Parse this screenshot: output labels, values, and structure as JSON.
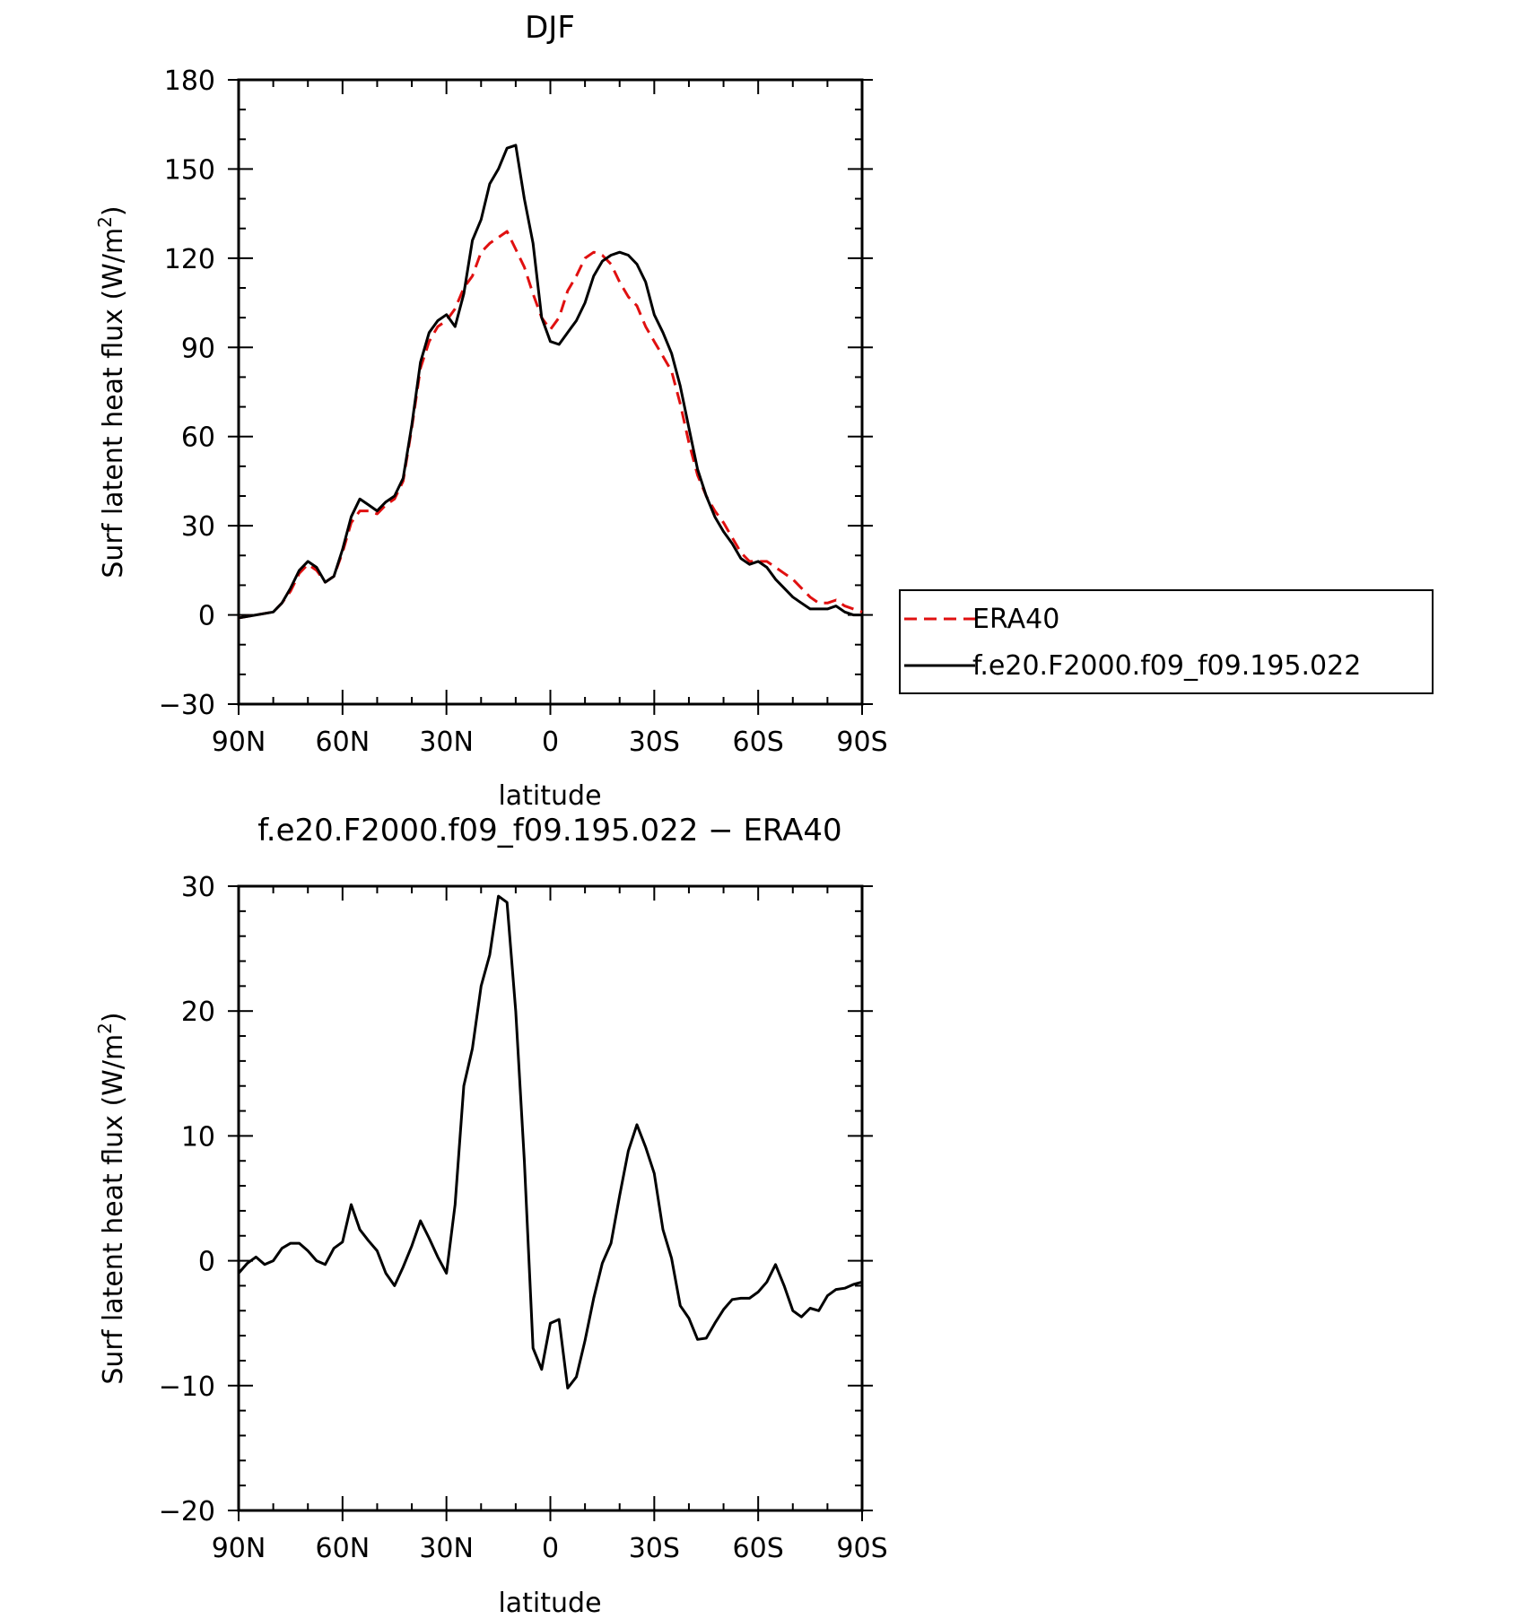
{
  "chart_data": [
    {
      "type": "line",
      "title": "DJF",
      "xlabel": "latitude",
      "ylabel": "Surf latent heat flux (W/m²)",
      "ylabel_parts": [
        "Surf latent heat flux (W/m",
        "2",
        ")"
      ],
      "xlim": [
        90,
        -90
      ],
      "ylim": [
        -30,
        180
      ],
      "x_ticks": [
        90,
        60,
        30,
        0,
        -30,
        -60,
        -90
      ],
      "x_tick_labels": [
        "90N",
        "60N",
        "30N",
        "0",
        "30S",
        "60S",
        "90S"
      ],
      "y_ticks": [
        -30,
        0,
        30,
        60,
        90,
        120,
        150,
        180
      ],
      "y_tick_labels": [
        "−30",
        "0",
        "30",
        "60",
        "90",
        "120",
        "150",
        "180"
      ],
      "grid": false,
      "legend": {
        "placement": "right",
        "entries": [
          {
            "name": "ERA40",
            "color": "#e01010",
            "dash": true
          },
          {
            "name": "f.e20.F2000.f09_f09.195.022",
            "color": "#000000",
            "dash": false
          }
        ]
      },
      "series": [
        {
          "name": "ERA40",
          "color": "#e01010",
          "dashed": true,
          "x": [
            90,
            85,
            80,
            77.5,
            75,
            72.5,
            70,
            67.5,
            65,
            62.5,
            60,
            57.5,
            55,
            52.5,
            50,
            47.5,
            45,
            42.5,
            40,
            37.5,
            35,
            32.5,
            30,
            27.5,
            25,
            22.5,
            20,
            17.5,
            15,
            12.5,
            10,
            7.5,
            5,
            2.5,
            0,
            -2.5,
            -5,
            -7.5,
            -10,
            -12.5,
            -15,
            -17.5,
            -20,
            -22.5,
            -25,
            -27.5,
            -30,
            -32.5,
            -35,
            -37.5,
            -40,
            -42.5,
            -45,
            -47.5,
            -50,
            -52.5,
            -55,
            -57.5,
            -60,
            -62.5,
            -65,
            -67.5,
            -70,
            -72.5,
            -75,
            -77.5,
            -80,
            -82.5,
            -85,
            -87.5,
            -90
          ],
          "values": [
            -1,
            0,
            1,
            4,
            8,
            14,
            17,
            15,
            11,
            13,
            21,
            31,
            35,
            35,
            34,
            37,
            39,
            45,
            63,
            83,
            92,
            97,
            99,
            103,
            110,
            114,
            122,
            125,
            127,
            129,
            123,
            117,
            108,
            100,
            96,
            100,
            109,
            114,
            120,
            122,
            121,
            118,
            112,
            107,
            104,
            97,
            92,
            87,
            82,
            71,
            58,
            47,
            40,
            35,
            31,
            26,
            21,
            18,
            18,
            18,
            16,
            14,
            12,
            9,
            6,
            4,
            4,
            5,
            3,
            2,
            1
          ]
        },
        {
          "name": "f.e20.F2000.f09_f09.195.022",
          "color": "#000000",
          "dashed": false,
          "x": [
            90,
            85,
            80,
            77.5,
            75,
            72.5,
            70,
            67.5,
            65,
            62.5,
            60,
            57.5,
            55,
            52.5,
            50,
            47.5,
            45,
            42.5,
            40,
            37.5,
            35,
            32.5,
            30,
            27.5,
            25,
            22.5,
            20,
            17.5,
            15,
            12.5,
            10,
            7.5,
            5,
            2.5,
            0,
            -2.5,
            -5,
            -7.5,
            -10,
            -12.5,
            -15,
            -17.5,
            -20,
            -22.5,
            -25,
            -27.5,
            -30,
            -32.5,
            -35,
            -37.5,
            -40,
            -42.5,
            -45,
            -47.5,
            -50,
            -52.5,
            -55,
            -57.5,
            -60,
            -62.5,
            -65,
            -67.5,
            -70,
            -72.5,
            -75,
            -77.5,
            -80,
            -82.5,
            -85,
            -87.5,
            -90
          ],
          "values": [
            -1,
            0,
            1,
            4,
            9,
            15,
            18,
            16,
            11,
            13,
            22,
            33,
            39,
            37,
            35,
            38,
            40,
            46,
            64,
            85,
            95,
            99,
            101,
            97,
            108,
            126,
            133,
            145,
            150,
            157,
            158,
            140,
            125,
            100,
            92,
            91,
            95,
            99,
            105,
            114,
            119,
            121,
            122,
            121,
            118,
            112,
            101,
            95,
            88,
            77,
            63,
            49,
            40,
            33,
            28,
            24,
            19,
            17,
            18,
            16,
            12,
            9,
            6,
            4,
            2,
            2,
            2,
            3,
            1,
            0,
            0
          ]
        }
      ]
    },
    {
      "type": "line",
      "title": "f.e20.F2000.f09_f09.195.022 − ERA40",
      "xlabel": "latitude",
      "ylabel": "Surf latent heat flux (W/m²)",
      "ylabel_parts": [
        "Surf latent heat flux (W/m",
        "2",
        ")"
      ],
      "xlim": [
        90,
        -90
      ],
      "ylim": [
        -20,
        30
      ],
      "x_ticks": [
        90,
        60,
        30,
        0,
        -30,
        -60,
        -90
      ],
      "x_tick_labels": [
        "90N",
        "60N",
        "30N",
        "0",
        "30S",
        "60S",
        "90S"
      ],
      "y_ticks": [
        -20,
        -10,
        0,
        10,
        20,
        30
      ],
      "y_tick_labels": [
        "−20",
        "−10",
        "0",
        "10",
        "20",
        "30"
      ],
      "grid": false,
      "series": [
        {
          "color": "#000000",
          "dashed": false,
          "x": [
            90,
            87.5,
            85,
            82.5,
            80,
            77.5,
            75,
            72.5,
            70,
            67.5,
            65,
            62.5,
            60,
            57.5,
            55,
            52.5,
            50,
            47.5,
            45,
            42.5,
            40,
            37.5,
            35,
            32.5,
            30,
            27.5,
            25,
            22.5,
            20,
            17.5,
            15,
            12.5,
            10,
            7.5,
            5,
            2.5,
            0,
            -2.5,
            -5,
            -7.5,
            -10,
            -12.5,
            -15,
            -17.5,
            -20,
            -22.5,
            -25,
            -27.5,
            -30,
            -32.5,
            -35,
            -37.5,
            -40,
            -42.5,
            -45,
            -47.5,
            -50,
            -52.5,
            -55,
            -57.5,
            -60,
            -62.5,
            -65,
            -67.5,
            -70,
            -72.5,
            -75,
            -77.5,
            -80,
            -82.5,
            -85,
            -87.5,
            -90
          ],
          "values": [
            -1,
            -0.2,
            0.3,
            -0.3,
            0,
            1,
            1.4,
            1.4,
            0.8,
            0,
            -0.3,
            1,
            1.5,
            4.5,
            2.5,
            1.6,
            0.8,
            -1,
            -2,
            -0.5,
            1.2,
            3.2,
            1.8,
            0.3,
            -1,
            4.5,
            14,
            17,
            22,
            24.5,
            29.2,
            28.7,
            20,
            8,
            -7,
            -8.7,
            -5,
            -4.7,
            -10.2,
            -9.3,
            -6.4,
            -3,
            -0.2,
            1.4,
            5.2,
            8.8,
            10.9,
            9.1,
            7,
            2.5,
            0.2,
            -3.6,
            -4.6,
            -6.3,
            -6.2,
            -5,
            -3.9,
            -3.1,
            -3,
            -3,
            -2.5,
            -1.7,
            -0.3,
            -2,
            -4,
            -4.5,
            -3.8,
            -4,
            -2.8,
            -2.3,
            -2.2,
            -1.9,
            -1.7
          ]
        }
      ]
    }
  ]
}
